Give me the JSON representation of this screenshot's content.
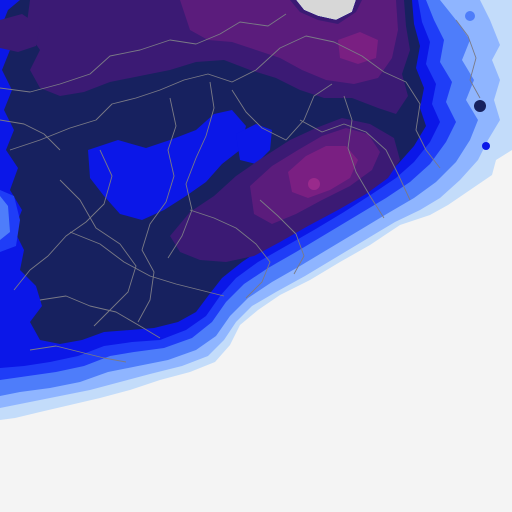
{
  "map": {
    "type": "precipitation-raster",
    "labels": [],
    "colors": {
      "sea": "#f4f4f4",
      "outside_land": "#d7d7d7",
      "band_1": "#c3dcfa",
      "band_2": "#8fb5ff",
      "band_3": "#4e7dfa",
      "band_4": "#1f3df7",
      "band_5": "#0b17e8",
      "band_6": "#17215f",
      "band_7": "#3b1a74",
      "band_8": "#5b1c7c",
      "band_9": "#7a1f82",
      "band_10": "#9a2a8c",
      "boundary": "#7a7a86"
    }
  }
}
